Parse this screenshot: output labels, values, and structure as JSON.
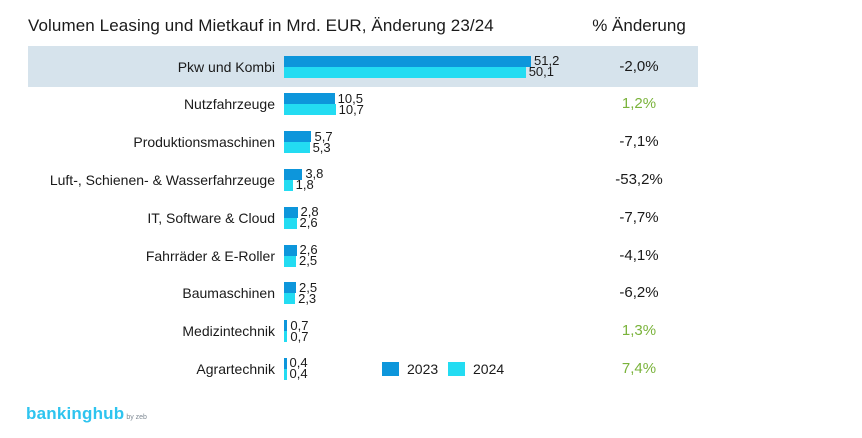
{
  "chart_data": {
    "type": "bar",
    "orientation": "horizontal",
    "title": "Volumen Leasing und Mietkauf in Mrd. EUR, Änderung 23/24",
    "change_header": "% Änderung",
    "categories": [
      "Pkw und Kombi",
      "Nutzfahrzeuge",
      "Produktionsmaschinen",
      "Luft-, Schienen- & Wasserfahrzeuge",
      "IT, Software & Cloud",
      "Fahrräder & E-Roller",
      "Baumaschinen",
      "Medizintechnik",
      "Agrartechnik"
    ],
    "series": [
      {
        "name": "2023",
        "color": "#0d96db",
        "values": [
          51.2,
          10.5,
          5.7,
          3.8,
          2.8,
          2.6,
          2.5,
          0.7,
          0.4
        ],
        "labels": [
          "51,2",
          "10,5",
          "5,7",
          "3,8",
          "2,8",
          "2,6",
          "2,5",
          "0,7",
          "0,4"
        ]
      },
      {
        "name": "2024",
        "color": "#23dcf2",
        "values": [
          50.1,
          10.7,
          5.3,
          1.8,
          2.6,
          2.5,
          2.3,
          0.7,
          0.4
        ],
        "labels": [
          "50,1",
          "10,7",
          "5,3",
          "1,8",
          "2,6",
          "2,5",
          "2,3",
          "0,7",
          "0,4"
        ]
      }
    ],
    "change": [
      "-2,0%",
      "1,2%",
      "-7,1%",
      "-53,2%",
      "-7,7%",
      "-4,1%",
      "-6,2%",
      "1,3%",
      "7,4%"
    ],
    "change_colors": [
      "#1a1a1a",
      "#7ab33b",
      "#1a1a1a",
      "#1a1a1a",
      "#1a1a1a",
      "#1a1a1a",
      "#1a1a1a",
      "#7ab33b",
      "#7ab33b"
    ],
    "highlight_index": 0,
    "xlim": [
      0,
      51.2
    ],
    "legend": "bottom-center"
  },
  "branding": {
    "logo_text": "bankinghub",
    "logo_sub": "by zeb"
  }
}
